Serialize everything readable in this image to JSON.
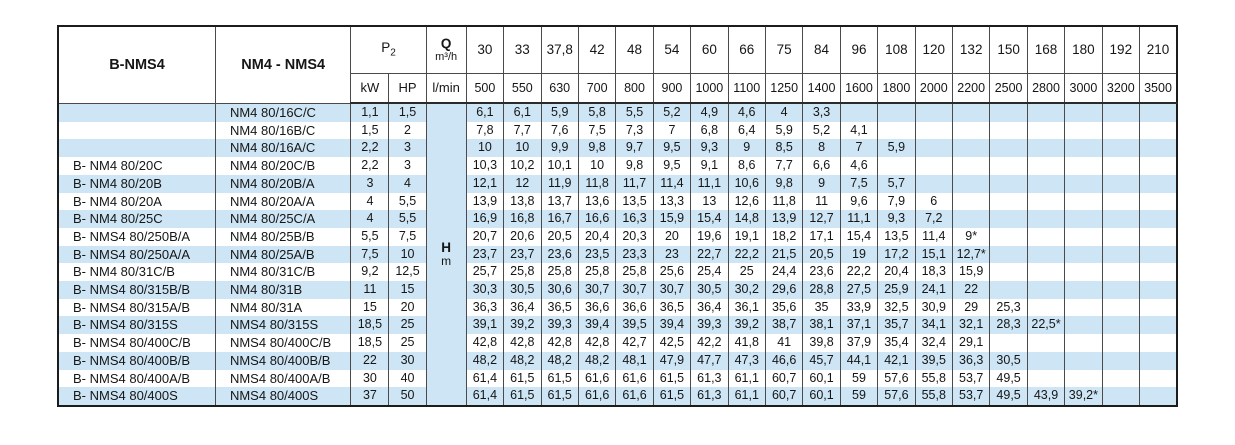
{
  "colors": {
    "stripe_blue": "#cde5f4",
    "border": "#4a4a4a",
    "outer_border": "#1c1c1c",
    "text": "#161616"
  },
  "table": {
    "labels": {
      "col1_header": "B-NMS4",
      "col2_header": "NM4 - NMS4",
      "p2_main": "P",
      "p2_sub": "2",
      "kw": "kW",
      "hp": "HP",
      "q_main": "Q",
      "q_unit": "m³/h",
      "lmin": "l/min",
      "head_main": "H",
      "head_unit": "m"
    },
    "flow_m3h": [
      "30",
      "33",
      "37,8",
      "42",
      "48",
      "54",
      "60",
      "66",
      "75",
      "84",
      "96",
      "108",
      "120",
      "132",
      "150",
      "168",
      "180",
      "192",
      "210"
    ],
    "flow_lmin": [
      "500",
      "550",
      "630",
      "700",
      "800",
      "900",
      "1000",
      "1100",
      "1250",
      "1400",
      "1600",
      "1800",
      "2000",
      "2200",
      "2500",
      "2800",
      "3000",
      "3200",
      "3500"
    ],
    "rows": [
      {
        "model_b": "",
        "model_n": "NM4 80/16C/C",
        "kw": "1,1",
        "hp": "1,5",
        "values": [
          "6,1",
          "6,1",
          "5,9",
          "5,8",
          "5,5",
          "5,2",
          "4,9",
          "4,6",
          "4",
          "3,3",
          "",
          "",
          "",
          "",
          "",
          "",
          "",
          "",
          ""
        ]
      },
      {
        "model_b": "",
        "model_n": "NM4 80/16B/C",
        "kw": "1,5",
        "hp": "2",
        "values": [
          "7,8",
          "7,7",
          "7,6",
          "7,5",
          "7,3",
          "7",
          "6,8",
          "6,4",
          "5,9",
          "5,2",
          "4,1",
          "",
          "",
          "",
          "",
          "",
          "",
          "",
          ""
        ]
      },
      {
        "model_b": "",
        "model_n": "NM4 80/16A/C",
        "kw": "2,2",
        "hp": "3",
        "values": [
          "10",
          "10",
          "9,9",
          "9,8",
          "9,7",
          "9,5",
          "9,3",
          "9",
          "8,5",
          "8",
          "7",
          "5,9",
          "",
          "",
          "",
          "",
          "",
          "",
          ""
        ]
      },
      {
        "model_b": "B- NM4 80/20C",
        "model_n": "NM4 80/20C/B",
        "kw": "2,2",
        "hp": "3",
        "values": [
          "10,3",
          "10,2",
          "10,1",
          "10",
          "9,8",
          "9,5",
          "9,1",
          "8,6",
          "7,7",
          "6,6",
          "4,6",
          "",
          "",
          "",
          "",
          "",
          "",
          "",
          ""
        ]
      },
      {
        "model_b": "B- NM4 80/20B",
        "model_n": "NM4 80/20B/A",
        "kw": "3",
        "hp": "4",
        "values": [
          "12,1",
          "12",
          "11,9",
          "11,8",
          "11,7",
          "11,4",
          "11,1",
          "10,6",
          "9,8",
          "9",
          "7,5",
          "5,7",
          "",
          "",
          "",
          "",
          "",
          "",
          ""
        ]
      },
      {
        "model_b": "B- NM4 80/20A",
        "model_n": "NM4 80/20A/A",
        "kw": "4",
        "hp": "5,5",
        "values": [
          "13,9",
          "13,8",
          "13,7",
          "13,6",
          "13,5",
          "13,3",
          "13",
          "12,6",
          "11,8",
          "11",
          "9,6",
          "7,9",
          "6",
          "",
          "",
          "",
          "",
          "",
          ""
        ]
      },
      {
        "model_b": "B- NM4 80/25C",
        "model_n": "NM4 80/25C/A",
        "kw": "4",
        "hp": "5,5",
        "values": [
          "16,9",
          "16,8",
          "16,7",
          "16,6",
          "16,3",
          "15,9",
          "15,4",
          "14,8",
          "13,9",
          "12,7",
          "11,1",
          "9,3",
          "7,2",
          "",
          "",
          "",
          "",
          "",
          ""
        ]
      },
      {
        "model_b": "B- NMS4 80/250B/A",
        "model_n": "NM4 80/25B/B",
        "kw": "5,5",
        "hp": "7,5",
        "values": [
          "20,7",
          "20,6",
          "20,5",
          "20,4",
          "20,3",
          "20",
          "19,6",
          "19,1",
          "18,2",
          "17,1",
          "15,4",
          "13,5",
          "11,4",
          "9*",
          "",
          "",
          "",
          "",
          ""
        ]
      },
      {
        "model_b": "B- NMS4 80/250A/A",
        "model_n": "NM4 80/25A/B",
        "kw": "7,5",
        "hp": "10",
        "values": [
          "23,7",
          "23,7",
          "23,6",
          "23,5",
          "23,3",
          "23",
          "22,7",
          "22,2",
          "21,5",
          "20,5",
          "19",
          "17,2",
          "15,1",
          "12,7*",
          "",
          "",
          "",
          "",
          ""
        ]
      },
      {
        "model_b": "B- NM4 80/31C/B",
        "model_n": "NM4 80/31C/B",
        "kw": "9,2",
        "hp": "12,5",
        "values": [
          "25,7",
          "25,8",
          "25,8",
          "25,8",
          "25,8",
          "25,6",
          "25,4",
          "25",
          "24,4",
          "23,6",
          "22,2",
          "20,4",
          "18,3",
          "15,9",
          "",
          "",
          "",
          "",
          ""
        ]
      },
      {
        "model_b": "B- NMS4 80/315B/B",
        "model_n": "NM4 80/31B",
        "kw": "11",
        "hp": "15",
        "values": [
          "30,3",
          "30,5",
          "30,6",
          "30,7",
          "30,7",
          "30,7",
          "30,5",
          "30,2",
          "29,6",
          "28,8",
          "27,5",
          "25,9",
          "24,1",
          "22",
          "",
          "",
          "",
          "",
          ""
        ]
      },
      {
        "model_b": "B- NMS4 80/315A/B",
        "model_n": "NM4 80/31A",
        "kw": "15",
        "hp": "20",
        "values": [
          "36,3",
          "36,4",
          "36,5",
          "36,6",
          "36,6",
          "36,5",
          "36,4",
          "36,1",
          "35,6",
          "35",
          "33,9",
          "32,5",
          "30,9",
          "29",
          "25,3",
          "",
          "",
          "",
          ""
        ]
      },
      {
        "model_b": "B- NMS4 80/315S",
        "model_n": "NMS4 80/315S",
        "kw": "18,5",
        "hp": "25",
        "values": [
          "39,1",
          "39,2",
          "39,3",
          "39,4",
          "39,5",
          "39,4",
          "39,3",
          "39,2",
          "38,7",
          "38,1",
          "37,1",
          "35,7",
          "34,1",
          "32,1",
          "28,3",
          "22,5*",
          "",
          "",
          ""
        ]
      },
      {
        "model_b": "B- NMS4 80/400C/B",
        "model_n": "NMS4 80/400C/B",
        "kw": "18,5",
        "hp": "25",
        "values": [
          "42,8",
          "42,8",
          "42,8",
          "42,8",
          "42,7",
          "42,5",
          "42,2",
          "41,8",
          "41",
          "39,8",
          "37,9",
          "35,4",
          "32,4",
          "29,1",
          "",
          "",
          "",
          "",
          ""
        ]
      },
      {
        "model_b": "B- NMS4 80/400B/B",
        "model_n": "NMS4 80/400B/B",
        "kw": "22",
        "hp": "30",
        "values": [
          "48,2",
          "48,2",
          "48,2",
          "48,2",
          "48,1",
          "47,9",
          "47,7",
          "47,3",
          "46,6",
          "45,7",
          "44,1",
          "42,1",
          "39,5",
          "36,3",
          "30,5",
          "",
          "",
          "",
          ""
        ]
      },
      {
        "model_b": "B- NMS4 80/400A/B",
        "model_n": "NMS4 80/400A/B",
        "kw": "30",
        "hp": "40",
        "values": [
          "61,4",
          "61,5",
          "61,5",
          "61,6",
          "61,6",
          "61,5",
          "61,3",
          "61,1",
          "60,7",
          "60,1",
          "59",
          "57,6",
          "55,8",
          "53,7",
          "49,5",
          "",
          "",
          "",
          ""
        ]
      },
      {
        "model_b": "B- NMS4 80/400S",
        "model_n": "NMS4 80/400S",
        "kw": "37",
        "hp": "50",
        "values": [
          "61,4",
          "61,5",
          "61,5",
          "61,6",
          "61,6",
          "61,5",
          "61,3",
          "61,1",
          "60,7",
          "60,1",
          "59",
          "57,6",
          "55,8",
          "53,7",
          "49,5",
          "43,9",
          "39,2*",
          "",
          ""
        ]
      }
    ]
  }
}
